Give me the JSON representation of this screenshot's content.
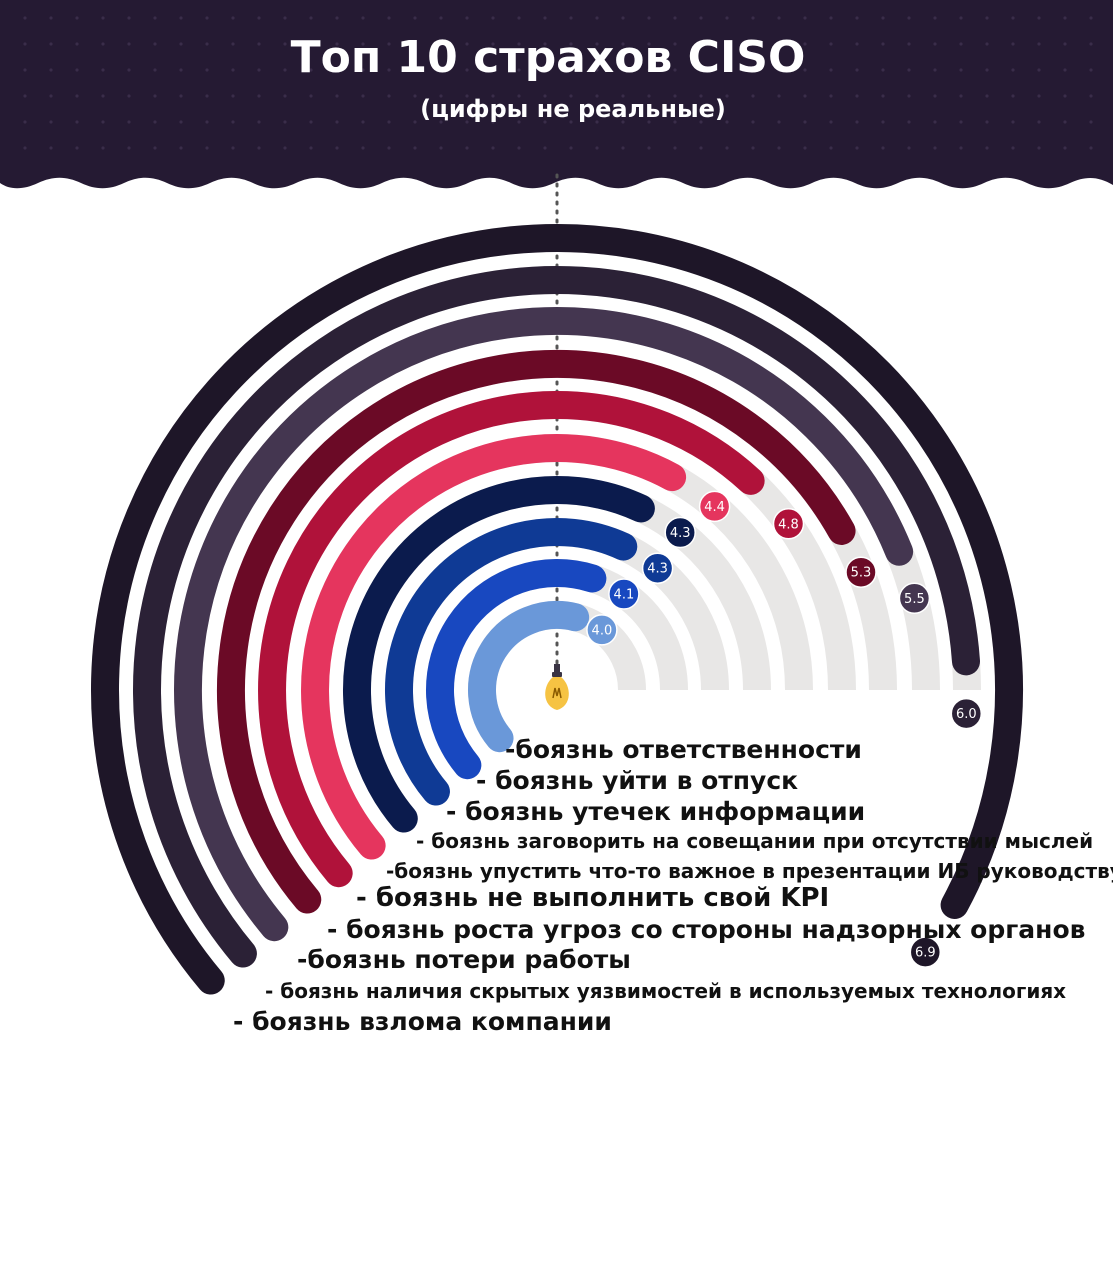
{
  "header": {
    "title": "Топ 10 страхов  CISO",
    "subtitle": "(цифры не реальные)"
  },
  "chart_data": {
    "type": "radial-bar",
    "title": "Топ 10 страхов  CISO",
    "subtitle": "(цифры не реальные)",
    "range": [
      0,
      10
    ],
    "series": [
      {
        "label": "-боязнь ответственности",
        "value": 4.0,
        "color": "#6a98d9"
      },
      {
        "label": "- боязнь уйти в отпуск",
        "value": 4.1,
        "color": "#1848c0"
      },
      {
        "label": "- боязнь утечек информации",
        "value": 4.3,
        "color": "#0f3a95"
      },
      {
        "label": "- боязнь заговорить на совещании при отсутствии мыслей",
        "value": 4.3,
        "color": "#0b1b4d"
      },
      {
        "label": "-боязнь упустить что-то важное в презентации ИБ руководству",
        "value": 4.4,
        "color": "#e5355e"
      },
      {
        "label": "- боязнь не выполнить свой KPI",
        "value": 4.8,
        "color": "#b0123a"
      },
      {
        "label": "- боязнь роста угроз со стороны надзорных органов",
        "value": 5.3,
        "color": "#6b0a26"
      },
      {
        "label": "-боязнь потери работы",
        "value": 5.5,
        "color": "#443650"
      },
      {
        "label": "- боязнь наличия скрытых уязвимостей в используемых технологиях",
        "value": 6.0,
        "color": "#2b2136"
      },
      {
        "label": "- боязнь взлома компании",
        "value": 6.9,
        "color": "#1e1628"
      }
    ],
    "value_labels": [
      "4.0",
      "4.1",
      "4.3",
      "4.3",
      "4.4",
      "4.8",
      "5.3",
      "5.5",
      "6.0",
      "6.9"
    ],
    "track_color": "#e8e7e6",
    "header_color": "#251a33",
    "center_icon": "lightbulb-icon"
  }
}
